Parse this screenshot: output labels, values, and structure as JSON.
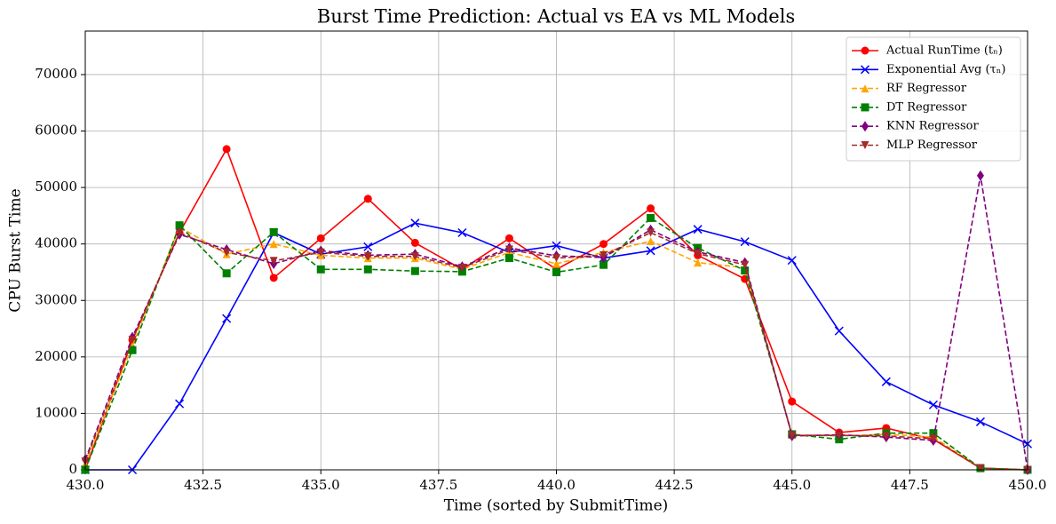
{
  "chart_data": {
    "type": "line",
    "title": "Burst Time Prediction: Actual vs EA vs ML Models",
    "xlabel": "Time (sorted by SubmitTime)",
    "ylabel": "CPU Burst Time",
    "x": [
      430,
      431,
      432,
      433,
      434,
      435,
      436,
      437,
      438,
      439,
      440,
      441,
      442,
      443,
      444,
      445,
      446,
      447,
      448,
      449,
      450
    ],
    "series": [
      {
        "name": "Actual RunTime (tₙ)",
        "color": "#ff0000",
        "marker": "circle",
        "dash": false,
        "values": [
          0,
          23000,
          42000,
          56800,
          34000,
          41000,
          48000,
          40200,
          35500,
          41000,
          35500,
          40000,
          46300,
          38000,
          33800,
          12100,
          6600,
          7400,
          5400,
          300,
          0
        ]
      },
      {
        "name": "Exponential Avg (τₙ)",
        "color": "#0000ff",
        "marker": "x",
        "dash": false,
        "values": [
          0,
          0,
          11700,
          26800,
          42000,
          38200,
          39500,
          43700,
          42000,
          38500,
          39700,
          37500,
          38800,
          42600,
          40400,
          37100,
          24600,
          15600,
          11500,
          8500,
          4600
        ]
      },
      {
        "name": "RF Regressor",
        "color": "#ffa500",
        "marker": "triangle-up",
        "dash": true,
        "values": [
          1000,
          22000,
          43000,
          38200,
          40000,
          38000,
          37500,
          37500,
          35500,
          38500,
          36500,
          38500,
          40500,
          36700,
          35800,
          6200,
          6000,
          6300,
          5800,
          300,
          0
        ]
      },
      {
        "name": "DT Regressor",
        "color": "#008000",
        "marker": "square",
        "dash": true,
        "values": [
          0,
          21200,
          43300,
          34800,
          42100,
          35500,
          35500,
          35200,
          35100,
          37500,
          35000,
          36300,
          44600,
          39300,
          35300,
          6300,
          5400,
          6500,
          6500,
          300,
          0
        ]
      },
      {
        "name": "KNN Regressor",
        "color": "#800080",
        "marker": "diamond",
        "dash": true,
        "values": [
          1800,
          23500,
          41700,
          39000,
          36500,
          38800,
          38000,
          38200,
          36000,
          39300,
          37900,
          37600,
          42500,
          38600,
          36700,
          6000,
          6200,
          5800,
          5200,
          52100,
          0
        ]
      },
      {
        "name": "MLP Regressor",
        "color": "#a52a2a",
        "marker": "triangle-down",
        "dash": true,
        "values": [
          1500,
          23000,
          42000,
          38500,
          37000,
          38500,
          37800,
          37800,
          35800,
          39000,
          37500,
          38000,
          42000,
          38300,
          36300,
          6100,
          6100,
          6000,
          5500,
          300,
          0
        ]
      }
    ],
    "xlim": [
      430,
      450
    ],
    "ylim": [
      0,
      77700
    ],
    "xticks": [
      {
        "value": 430,
        "label": "430.0"
      },
      {
        "value": 432.5,
        "label": "432.5"
      },
      {
        "value": 435,
        "label": "435.0"
      },
      {
        "value": 437.5,
        "label": "437.5"
      },
      {
        "value": 440,
        "label": "440.0"
      },
      {
        "value": 442.5,
        "label": "442.5"
      },
      {
        "value": 445,
        "label": "445.0"
      },
      {
        "value": 447.5,
        "label": "447.5"
      },
      {
        "value": 450,
        "label": "450.0"
      }
    ],
    "yticks": [
      0,
      10000,
      20000,
      30000,
      40000,
      50000,
      60000,
      70000
    ],
    "grid": true,
    "legend": "upper right"
  }
}
